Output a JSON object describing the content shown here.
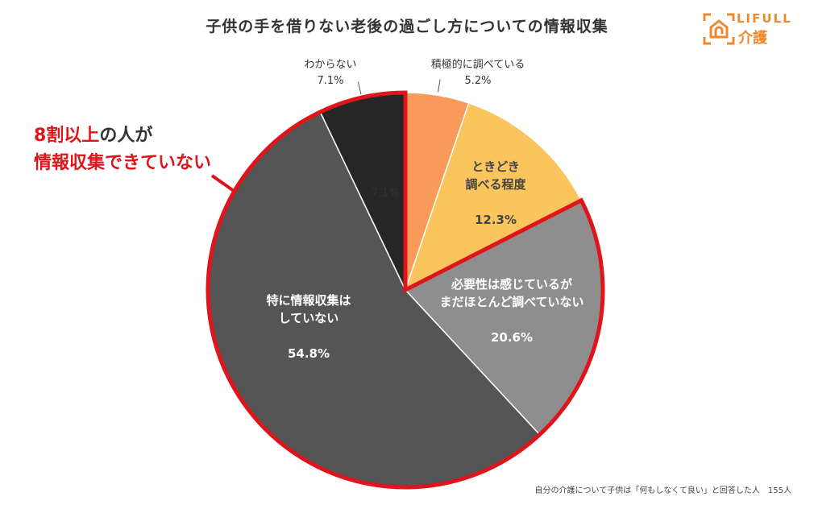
{
  "title": "子供の手を借りない老後の過ごし方についての情報収集",
  "logo": {
    "line1": "LIFULL",
    "line2": "介護",
    "color": "#F0892E"
  },
  "callout": {
    "line1_red": "8割以上",
    "line1_rest": "の人が",
    "line2": "情報収集できていない",
    "color": "#E0141B"
  },
  "footnote": "自分の介護について子供は「何もしなくて良い」と回答した人　155人",
  "chart_data": {
    "type": "pie",
    "title": "子供の手を借りない老後の過ごし方についての情報収集",
    "start": "12 o'clock, clockwise",
    "slices": [
      {
        "label": [
          "積極的に調べている"
        ],
        "value": 5.2,
        "display": "5.2%",
        "color": "#F79A5A",
        "label_outside": true
      },
      {
        "label": [
          "ときどき",
          "調べる程度"
        ],
        "value": 12.3,
        "display": "12.3%",
        "color": "#FBC55E",
        "label_outside": false
      },
      {
        "label": [
          "必要性は感じているが",
          "まだほとんど調べていない"
        ],
        "value": 20.6,
        "display": "20.6%",
        "color": "#8E8E8E",
        "label_outside": false
      },
      {
        "label": [
          "特に情報収集は",
          "していない"
        ],
        "value": 54.8,
        "display": "54.8%",
        "color": "#555555",
        "label_outside": false
      },
      {
        "label": [
          "わからない"
        ],
        "value": 7.1,
        "display": "7.1%",
        "color": "#262626",
        "label_outside": true,
        "inner_display": "7.1%"
      }
    ],
    "highlight": {
      "slices": [
        2,
        3,
        4
      ],
      "color": "#E0141B"
    }
  }
}
